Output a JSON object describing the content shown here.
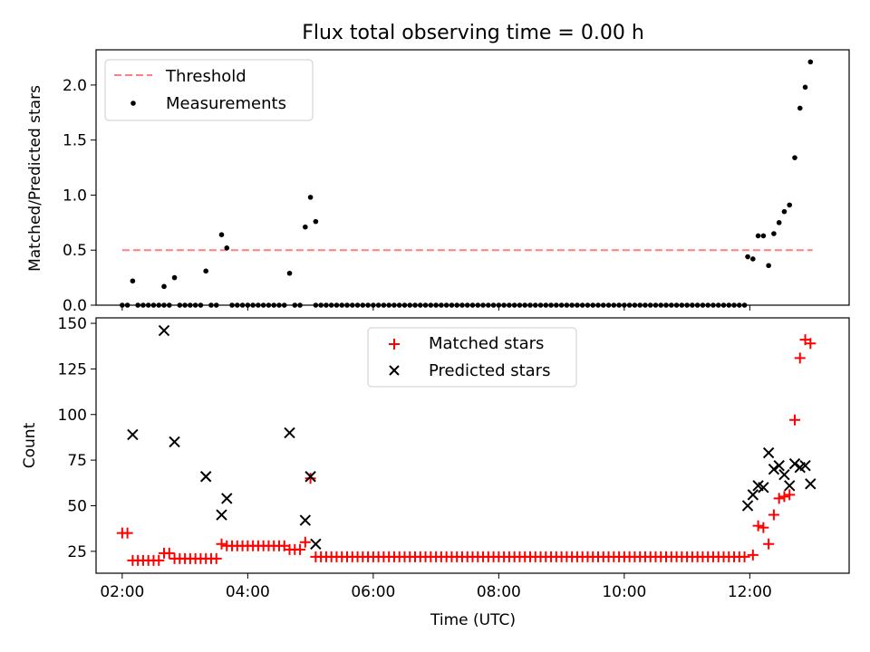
{
  "chart_data": [
    {
      "type": "scatter",
      "title": "Flux total observing time = 0.00 h",
      "xlabel": "",
      "ylabel": "Matched/Predicted stars",
      "xlim": [
        "01:35",
        "13:35"
      ],
      "ylim": [
        0,
        2.32
      ],
      "yticks": [
        0.0,
        0.5,
        1.0,
        1.5,
        2.0
      ],
      "ytick_labels": [
        "0.0",
        "0.5",
        "1.0",
        "1.5",
        "2.0"
      ],
      "legend_position": "upper-left",
      "legend": [
        {
          "label": "Threshold",
          "kind": "dashed-line",
          "color": "#ff7f7f"
        },
        {
          "label": "Measurements",
          "kind": "dot",
          "color": "#000000"
        }
      ],
      "threshold": {
        "value": 0.5,
        "x_start": "02:00",
        "x_end": "13:00"
      },
      "measurements": {
        "zero_runs": [
          {
            "start": "02:00",
            "end": "02:05",
            "step_min": 5
          },
          {
            "start": "02:15",
            "end": "02:40",
            "step_min": 5
          },
          {
            "start": "02:45",
            "end": "02:45",
            "step_min": 5
          },
          {
            "start": "02:55",
            "end": "03:15",
            "step_min": 5
          },
          {
            "start": "03:25",
            "end": "03:30",
            "step_min": 5
          },
          {
            "start": "03:45",
            "end": "04:35",
            "step_min": 5
          },
          {
            "start": "04:45",
            "end": "04:50",
            "step_min": 5
          },
          {
            "start": "05:05",
            "end": "11:55",
            "step_min": 5
          }
        ],
        "points": [
          {
            "x": "02:10",
            "y": 0.22
          },
          {
            "x": "02:40",
            "y": 0.17
          },
          {
            "x": "02:50",
            "y": 0.25
          },
          {
            "x": "03:20",
            "y": 0.31
          },
          {
            "x": "03:35",
            "y": 0.64
          },
          {
            "x": "03:40",
            "y": 0.52
          },
          {
            "x": "04:40",
            "y": 0.29
          },
          {
            "x": "04:55",
            "y": 0.71
          },
          {
            "x": "05:00",
            "y": 0.98
          },
          {
            "x": "05:05",
            "y": 0.76
          },
          {
            "x": "11:58",
            "y": 0.44
          },
          {
            "x": "12:03",
            "y": 0.42
          },
          {
            "x": "12:08",
            "y": 0.63
          },
          {
            "x": "12:13",
            "y": 0.63
          },
          {
            "x": "12:18",
            "y": 0.36
          },
          {
            "x": "12:23",
            "y": 0.65
          },
          {
            "x": "12:28",
            "y": 0.75
          },
          {
            "x": "12:33",
            "y": 0.85
          },
          {
            "x": "12:38",
            "y": 0.91
          },
          {
            "x": "12:43",
            "y": 1.34
          },
          {
            "x": "12:48",
            "y": 1.79
          },
          {
            "x": "12:53",
            "y": 1.98
          },
          {
            "x": "12:58",
            "y": 2.21
          }
        ]
      }
    },
    {
      "type": "scatter",
      "title": "",
      "xlabel": "Time (UTC)",
      "ylabel": "Count",
      "xlim": [
        "01:35",
        "13:35"
      ],
      "ylim": [
        13,
        153
      ],
      "yticks": [
        25,
        50,
        75,
        100,
        125,
        150
      ],
      "ytick_labels": [
        "25",
        "50",
        "75",
        "100",
        "125",
        "150"
      ],
      "xticks": [
        "02:00",
        "04:00",
        "06:00",
        "08:00",
        "10:00",
        "12:00"
      ],
      "xtick_labels": [
        "02:00",
        "04:00",
        "06:00",
        "08:00",
        "10:00",
        "12:00"
      ],
      "legend_position": "upper-center",
      "series": [
        {
          "name": "Matched stars",
          "marker": "+",
          "color": "#ff0000",
          "constant_runs": [
            {
              "start": "02:00",
              "end": "02:05",
              "step_min": 5,
              "y": 35
            },
            {
              "start": "02:10",
              "end": "02:35",
              "step_min": 5,
              "y": 20
            },
            {
              "start": "02:40",
              "end": "02:45",
              "step_min": 5,
              "y": 24
            },
            {
              "start": "02:50",
              "end": "03:30",
              "step_min": 5,
              "y": 21
            },
            {
              "start": "03:35",
              "end": "03:35",
              "step_min": 5,
              "y": 29
            },
            {
              "start": "03:40",
              "end": "04:35",
              "step_min": 5,
              "y": 28
            },
            {
              "start": "04:40",
              "end": "04:50",
              "step_min": 5,
              "y": 26
            },
            {
              "start": "04:55",
              "end": "04:55",
              "step_min": 5,
              "y": 30
            },
            {
              "start": "05:05",
              "end": "11:55",
              "step_min": 5,
              "y": 22
            }
          ],
          "points": [
            {
              "x": "05:00",
              "y": 65
            },
            {
              "x": "12:03",
              "y": 23
            },
            {
              "x": "12:08",
              "y": 39
            },
            {
              "x": "12:13",
              "y": 38
            },
            {
              "x": "12:18",
              "y": 29
            },
            {
              "x": "12:23",
              "y": 45
            },
            {
              "x": "12:28",
              "y": 54
            },
            {
              "x": "12:33",
              "y": 55
            },
            {
              "x": "12:38",
              "y": 56
            },
            {
              "x": "12:43",
              "y": 97
            },
            {
              "x": "12:48",
              "y": 131
            },
            {
              "x": "12:53",
              "y": 141
            },
            {
              "x": "12:58",
              "y": 139
            }
          ]
        },
        {
          "name": "Predicted stars",
          "marker": "x",
          "color": "#000000",
          "points": [
            {
              "x": "02:10",
              "y": 89
            },
            {
              "x": "02:40",
              "y": 146
            },
            {
              "x": "02:50",
              "y": 85
            },
            {
              "x": "03:20",
              "y": 66
            },
            {
              "x": "03:35",
              "y": 45
            },
            {
              "x": "03:40",
              "y": 54
            },
            {
              "x": "04:40",
              "y": 90
            },
            {
              "x": "04:55",
              "y": 42
            },
            {
              "x": "05:00",
              "y": 66
            },
            {
              "x": "05:05",
              "y": 29
            },
            {
              "x": "11:58",
              "y": 50
            },
            {
              "x": "12:03",
              "y": 56
            },
            {
              "x": "12:08",
              "y": 61
            },
            {
              "x": "12:13",
              "y": 60
            },
            {
              "x": "12:18",
              "y": 79
            },
            {
              "x": "12:23",
              "y": 70
            },
            {
              "x": "12:28",
              "y": 72
            },
            {
              "x": "12:33",
              "y": 67
            },
            {
              "x": "12:38",
              "y": 61
            },
            {
              "x": "12:43",
              "y": 73
            },
            {
              "x": "12:48",
              "y": 71
            },
            {
              "x": "12:53",
              "y": 72
            },
            {
              "x": "12:58",
              "y": 62
            }
          ]
        }
      ]
    }
  ]
}
